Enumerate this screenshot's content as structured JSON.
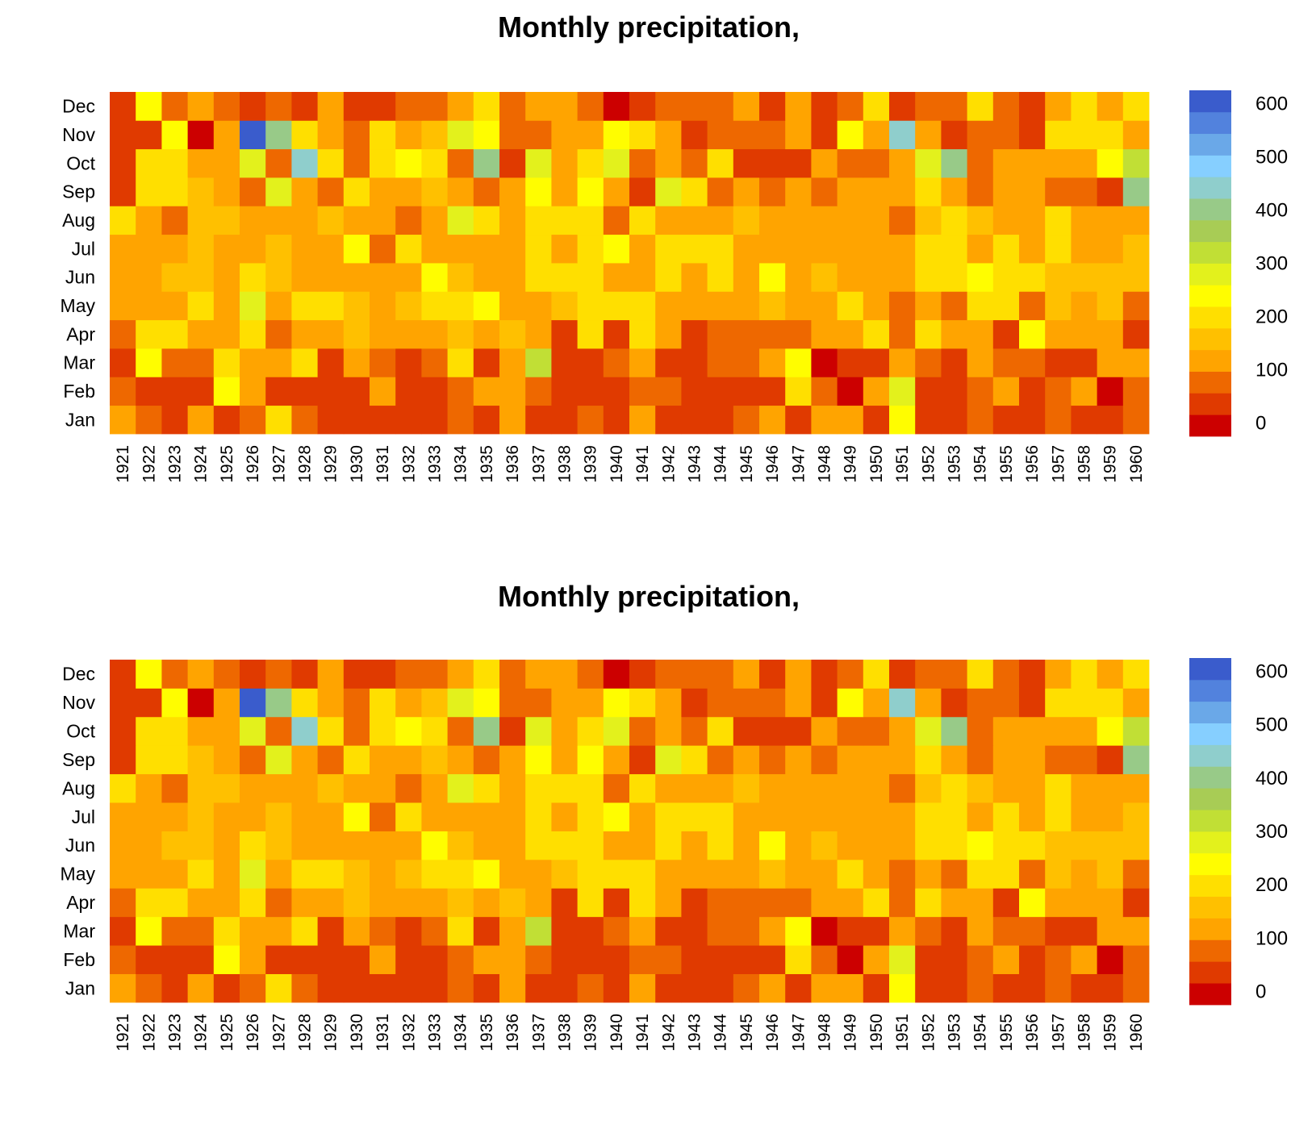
{
  "chart_data": [
    {
      "type": "heatmap",
      "title": "Monthly precipitation,",
      "xlabel": "",
      "ylabel": "",
      "x": [
        "1921",
        "1922",
        "1923",
        "1924",
        "1925",
        "1926",
        "1927",
        "1928",
        "1929",
        "1930",
        "1931",
        "1932",
        "1933",
        "1934",
        "1935",
        "1936",
        "1937",
        "1938",
        "1939",
        "1940",
        "1941",
        "1942",
        "1943",
        "1944",
        "1945",
        "1946",
        "1947",
        "1948",
        "1949",
        "1950",
        "1951",
        "1952",
        "1953",
        "1954",
        "1955",
        "1956",
        "1957",
        "1958",
        "1959",
        "1960"
      ],
      "y": [
        "Jan",
        "Feb",
        "Mar",
        "Apr",
        "May",
        "Jun",
        "Jul",
        "Aug",
        "Sep",
        "Oct",
        "Nov",
        "Dec"
      ],
      "values": [
        [
          110,
          60,
          35,
          110,
          35,
          60,
          185,
          60,
          35,
          35,
          35,
          35,
          35,
          60,
          35,
          110,
          35,
          35,
          60,
          35,
          110,
          35,
          35,
          35,
          60,
          110,
          35,
          135,
          110,
          35,
          235,
          35,
          35,
          60,
          35,
          35,
          60,
          35,
          35,
          60
        ],
        [
          60,
          35,
          35,
          35,
          235,
          110,
          35,
          35,
          35,
          35,
          135,
          35,
          35,
          60,
          135,
          110,
          60,
          35,
          35,
          35,
          60,
          60,
          35,
          35,
          35,
          35,
          185,
          60,
          -10,
          110,
          285,
          35,
          35,
          60,
          110,
          35,
          60,
          110,
          -10,
          60
        ],
        [
          35,
          235,
          60,
          60,
          185,
          110,
          110,
          185,
          35,
          110,
          60,
          35,
          60,
          210,
          35,
          110,
          335,
          35,
          35,
          60,
          110,
          35,
          35,
          60,
          60,
          135,
          235,
          -10,
          35,
          35,
          135,
          60,
          35,
          135,
          60,
          60,
          35,
          35,
          135,
          110
        ],
        [
          60,
          185,
          185,
          135,
          135,
          210,
          60,
          135,
          110,
          160,
          110,
          135,
          110,
          160,
          135,
          160,
          110,
          35,
          185,
          35,
          185,
          110,
          35,
          60,
          60,
          60,
          60,
          135,
          110,
          210,
          60,
          185,
          110,
          110,
          35,
          235,
          110,
          135,
          135,
          35
        ],
        [
          135,
          110,
          110,
          210,
          135,
          285,
          135,
          185,
          210,
          160,
          135,
          160,
          210,
          210,
          235,
          135,
          135,
          160,
          210,
          210,
          210,
          110,
          135,
          135,
          135,
          160,
          135,
          110,
          185,
          110,
          60,
          110,
          60,
          210,
          185,
          60,
          160,
          110,
          160,
          60
        ],
        [
          110,
          110,
          160,
          160,
          110,
          210,
          160,
          110,
          135,
          135,
          135,
          135,
          235,
          160,
          110,
          135,
          210,
          210,
          185,
          135,
          135,
          210,
          110,
          210,
          110,
          235,
          135,
          160,
          110,
          135,
          110,
          185,
          185,
          235,
          185,
          210,
          160,
          160,
          160,
          160
        ],
        [
          110,
          135,
          110,
          160,
          135,
          110,
          160,
          110,
          110,
          235,
          60,
          210,
          110,
          110,
          110,
          135,
          185,
          135,
          210,
          235,
          135,
          185,
          185,
          210,
          110,
          135,
          135,
          135,
          110,
          110,
          110,
          210,
          210,
          110,
          185,
          135,
          210,
          135,
          110,
          160
        ],
        [
          185,
          110,
          60,
          160,
          160,
          110,
          110,
          110,
          160,
          135,
          135,
          60,
          110,
          285,
          210,
          110,
          210,
          185,
          210,
          60,
          185,
          110,
          110,
          110,
          160,
          135,
          135,
          135,
          110,
          135,
          60,
          160,
          210,
          160,
          135,
          135,
          210,
          135,
          110,
          135
        ],
        [
          35,
          210,
          185,
          160,
          110,
          60,
          285,
          135,
          60,
          210,
          110,
          110,
          160,
          110,
          60,
          110,
          235,
          135,
          235,
          135,
          35,
          285,
          185,
          60,
          110,
          60,
          135,
          60,
          110,
          135,
          110,
          210,
          135,
          60,
          135,
          135,
          60,
          60,
          35,
          385
        ],
        [
          35,
          185,
          185,
          110,
          135,
          285,
          60,
          460,
          185,
          60,
          210,
          235,
          210,
          60,
          385,
          35,
          285,
          110,
          185,
          285,
          60,
          110,
          60,
          185,
          35,
          35,
          35,
          135,
          60,
          60,
          110,
          285,
          410,
          60,
          110,
          135,
          110,
          135,
          235,
          335
        ],
        [
          35,
          35,
          235,
          -10,
          110,
          585,
          385,
          210,
          110,
          60,
          210,
          110,
          160,
          285,
          235,
          60,
          60,
          135,
          110,
          235,
          185,
          135,
          35,
          60,
          60,
          60,
          110,
          35,
          235,
          135,
          460,
          110,
          35,
          60,
          60,
          35,
          185,
          210,
          210,
          135
        ],
        [
          35,
          235,
          60,
          110,
          60,
          35,
          60,
          35,
          135,
          35,
          35,
          60,
          60,
          110,
          185,
          60,
          135,
          110,
          60,
          -10,
          35,
          60,
          60,
          60,
          135,
          35,
          110,
          35,
          60,
          185,
          35,
          60,
          60,
          185,
          60,
          35,
          135,
          210,
          135,
          210
        ]
      ],
      "legend": {
        "ticks": [
          0,
          100,
          200,
          300,
          400,
          500,
          600
        ],
        "range": [
          -25,
          625
        ],
        "colors": [
          "#cc0000",
          "#e03a00",
          "#ee6800",
          "#ffa400",
          "#ffc000",
          "#ffdf00",
          "#fffd00",
          "#e3f11c",
          "#c1df35",
          "#a8cc55",
          "#98ca88",
          "#8fcecc",
          "#86cfff",
          "#6aa8e8",
          "#5282dd",
          "#3a5ccc"
        ],
        "placement": "right"
      }
    },
    {
      "type": "heatmap",
      "title": "Monthly precipitation,",
      "xlabel": "",
      "ylabel": "",
      "x": [
        "1921",
        "1922",
        "1923",
        "1924",
        "1925",
        "1926",
        "1927",
        "1928",
        "1929",
        "1930",
        "1931",
        "1932",
        "1933",
        "1934",
        "1935",
        "1936",
        "1937",
        "1938",
        "1939",
        "1940",
        "1941",
        "1942",
        "1943",
        "1944",
        "1945",
        "1946",
        "1947",
        "1948",
        "1949",
        "1950",
        "1951",
        "1952",
        "1953",
        "1954",
        "1955",
        "1956",
        "1957",
        "1958",
        "1959",
        "1960"
      ],
      "y": [
        "Jan",
        "Feb",
        "Mar",
        "Apr",
        "May",
        "Jun",
        "Jul",
        "Aug",
        "Sep",
        "Oct",
        "Nov",
        "Dec"
      ],
      "values": [
        [
          110,
          60,
          35,
          110,
          35,
          60,
          185,
          60,
          35,
          35,
          35,
          35,
          35,
          60,
          35,
          110,
          35,
          35,
          60,
          35,
          110,
          35,
          35,
          35,
          60,
          110,
          35,
          135,
          110,
          35,
          235,
          35,
          35,
          60,
          35,
          35,
          60,
          35,
          35,
          60
        ],
        [
          60,
          35,
          35,
          35,
          235,
          110,
          35,
          35,
          35,
          35,
          135,
          35,
          35,
          60,
          135,
          110,
          60,
          35,
          35,
          35,
          60,
          60,
          35,
          35,
          35,
          35,
          185,
          60,
          -10,
          110,
          285,
          35,
          35,
          60,
          110,
          35,
          60,
          110,
          -10,
          60
        ],
        [
          35,
          235,
          60,
          60,
          185,
          110,
          110,
          185,
          35,
          110,
          60,
          35,
          60,
          210,
          35,
          110,
          335,
          35,
          35,
          60,
          110,
          35,
          35,
          60,
          60,
          135,
          235,
          -10,
          35,
          35,
          135,
          60,
          35,
          135,
          60,
          60,
          35,
          35,
          135,
          110
        ],
        [
          60,
          185,
          185,
          135,
          135,
          210,
          60,
          135,
          110,
          160,
          110,
          135,
          110,
          160,
          135,
          160,
          110,
          35,
          185,
          35,
          185,
          110,
          35,
          60,
          60,
          60,
          60,
          135,
          110,
          210,
          60,
          185,
          110,
          110,
          35,
          235,
          110,
          135,
          135,
          35
        ],
        [
          135,
          110,
          110,
          210,
          135,
          285,
          135,
          185,
          210,
          160,
          135,
          160,
          210,
          210,
          235,
          135,
          135,
          160,
          210,
          210,
          210,
          110,
          135,
          135,
          135,
          160,
          135,
          110,
          185,
          110,
          60,
          110,
          60,
          210,
          185,
          60,
          160,
          110,
          160,
          60
        ],
        [
          110,
          110,
          160,
          160,
          110,
          210,
          160,
          110,
          135,
          135,
          135,
          135,
          235,
          160,
          110,
          135,
          210,
          210,
          185,
          135,
          135,
          210,
          110,
          210,
          110,
          235,
          135,
          160,
          110,
          135,
          110,
          185,
          185,
          235,
          185,
          210,
          160,
          160,
          160,
          160
        ],
        [
          110,
          135,
          110,
          160,
          135,
          110,
          160,
          110,
          110,
          235,
          60,
          210,
          110,
          110,
          110,
          135,
          185,
          135,
          210,
          235,
          135,
          185,
          185,
          210,
          110,
          135,
          135,
          135,
          110,
          110,
          110,
          210,
          210,
          110,
          185,
          135,
          210,
          135,
          110,
          160
        ],
        [
          185,
          110,
          60,
          160,
          160,
          110,
          110,
          110,
          160,
          135,
          135,
          60,
          110,
          285,
          210,
          110,
          210,
          185,
          210,
          60,
          185,
          110,
          110,
          110,
          160,
          135,
          135,
          135,
          110,
          135,
          60,
          160,
          210,
          160,
          135,
          135,
          210,
          135,
          110,
          135
        ],
        [
          35,
          210,
          185,
          160,
          110,
          60,
          285,
          135,
          60,
          210,
          110,
          110,
          160,
          110,
          60,
          110,
          235,
          135,
          235,
          135,
          35,
          285,
          185,
          60,
          110,
          60,
          135,
          60,
          110,
          135,
          110,
          210,
          135,
          60,
          135,
          135,
          60,
          60,
          35,
          385
        ],
        [
          35,
          185,
          185,
          110,
          135,
          285,
          60,
          460,
          185,
          60,
          210,
          235,
          210,
          60,
          385,
          35,
          285,
          110,
          185,
          285,
          60,
          110,
          60,
          185,
          35,
          35,
          35,
          135,
          60,
          60,
          110,
          285,
          410,
          60,
          110,
          135,
          110,
          135,
          235,
          335
        ],
        [
          35,
          35,
          235,
          -10,
          110,
          585,
          385,
          210,
          110,
          60,
          210,
          110,
          160,
          285,
          235,
          60,
          60,
          135,
          110,
          235,
          185,
          135,
          35,
          60,
          60,
          60,
          110,
          35,
          235,
          135,
          460,
          110,
          35,
          60,
          60,
          35,
          185,
          210,
          210,
          135
        ],
        [
          35,
          235,
          60,
          110,
          60,
          35,
          60,
          35,
          135,
          35,
          35,
          60,
          60,
          110,
          185,
          60,
          135,
          110,
          60,
          -10,
          35,
          60,
          60,
          60,
          135,
          35,
          110,
          35,
          60,
          185,
          35,
          60,
          60,
          185,
          60,
          35,
          135,
          210,
          135,
          210
        ]
      ],
      "legend": {
        "ticks": [
          0,
          100,
          200,
          300,
          400,
          500,
          600
        ],
        "range": [
          -25,
          625
        ],
        "colors": [
          "#cc0000",
          "#e03a00",
          "#ee6800",
          "#ffa400",
          "#ffc000",
          "#ffdf00",
          "#fffd00",
          "#e3f11c",
          "#c1df35",
          "#a8cc55",
          "#98ca88",
          "#8fcecc",
          "#86cfff",
          "#6aa8e8",
          "#5282dd",
          "#3a5ccc"
        ],
        "placement": "right"
      }
    }
  ]
}
